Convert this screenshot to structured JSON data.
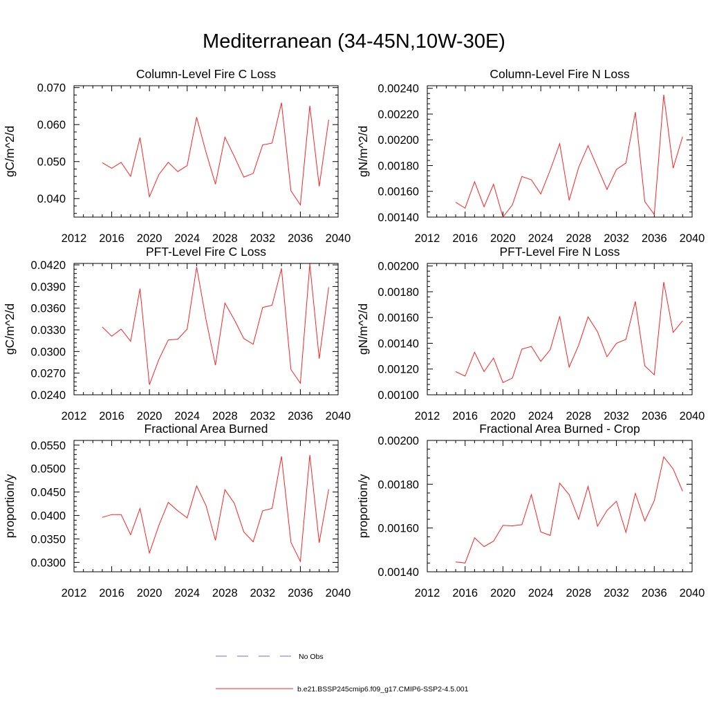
{
  "figure": {
    "title": "Mediterranean (34-45N,10W-30E)",
    "legend": [
      {
        "label": "No Obs",
        "color": "#6f6fd8",
        "dash": true
      },
      {
        "label": "b.e21.BSSP245cmip6.f09_g17.CMIP6-SSP2-4.5.001",
        "color": "#ff2020",
        "dash": false
      }
    ]
  },
  "chart_data": [
    {
      "type": "line",
      "title": "Column-Level Fire C Loss",
      "ylabel": "gC/m^2/d",
      "xlim": [
        2012,
        2040
      ],
      "ylim": [
        0.035,
        0.0705
      ],
      "xticks": [
        "2012",
        "2016",
        "2020",
        "2024",
        "2028",
        "2032",
        "2036",
        "2040"
      ],
      "yticks": [
        "0.040",
        "0.050",
        "0.060",
        "0.070"
      ],
      "ytick_values": [
        0.04,
        0.05,
        0.06,
        0.07
      ],
      "x": [
        2015,
        2016,
        2017,
        2018,
        2019,
        2020,
        2021,
        2022,
        2023,
        2024,
        2025,
        2026,
        2027,
        2028,
        2029,
        2030,
        2031,
        2032,
        2033,
        2034,
        2035,
        2036,
        2037,
        2038,
        2039
      ],
      "series": [
        {
          "color": "#ff2020",
          "values": [
            0.0497,
            0.0482,
            0.0498,
            0.046,
            0.0565,
            0.0405,
            0.0465,
            0.0498,
            0.0473,
            0.0489,
            0.062,
            0.0525,
            0.0439,
            0.0566,
            0.0514,
            0.0458,
            0.0468,
            0.0545,
            0.055,
            0.0659,
            0.0421,
            0.0383,
            0.0651,
            0.0433,
            0.0613
          ]
        }
      ]
    },
    {
      "type": "line",
      "title": "Column-Level Fire N Loss",
      "ylabel": "gN/m^2/d",
      "xlim": [
        2012,
        2040
      ],
      "ylim": [
        0.0014,
        0.00242
      ],
      "xticks": [
        "2012",
        "2016",
        "2020",
        "2024",
        "2028",
        "2032",
        "2036",
        "2040"
      ],
      "yticks": [
        "0.00140",
        "0.00160",
        "0.00180",
        "0.00200",
        "0.00220",
        "0.00240"
      ],
      "ytick_values": [
        0.0014,
        0.0016,
        0.0018,
        0.002,
        0.0022,
        0.0024
      ],
      "x": [
        2015,
        2016,
        2017,
        2018,
        2019,
        2020,
        2021,
        2022,
        2023,
        2024,
        2025,
        2026,
        2027,
        2028,
        2029,
        2030,
        2031,
        2032,
        2033,
        2034,
        2035,
        2036,
        2037,
        2038,
        2039
      ],
      "series": [
        {
          "color": "#ff2020",
          "values": [
            0.001515,
            0.00147,
            0.001675,
            0.00148,
            0.001655,
            0.0014,
            0.001495,
            0.001715,
            0.00169,
            0.00158,
            0.001765,
            0.00197,
            0.00153,
            0.001785,
            0.001955,
            0.001785,
            0.001615,
            0.00177,
            0.00182,
            0.002215,
            0.00152,
            0.00142,
            0.00235,
            0.00178,
            0.002025
          ]
        }
      ]
    },
    {
      "type": "line",
      "title": "PFT-Level Fire C Loss",
      "ylabel": "gC/m^2/d",
      "xlim": [
        2012,
        2040
      ],
      "ylim": [
        0.024,
        0.0422
      ],
      "xticks": [
        "2012",
        "2016",
        "2020",
        "2024",
        "2028",
        "2032",
        "2036",
        "2040"
      ],
      "yticks": [
        "0.0240",
        "0.0270",
        "0.0300",
        "0.0330",
        "0.0360",
        "0.0390",
        "0.0420"
      ],
      "ytick_values": [
        0.024,
        0.027,
        0.03,
        0.033,
        0.036,
        0.039,
        0.042
      ],
      "x": [
        2015,
        2016,
        2017,
        2018,
        2019,
        2020,
        2021,
        2022,
        2023,
        2024,
        2025,
        2026,
        2027,
        2028,
        2029,
        2030,
        2031,
        2032,
        2033,
        2034,
        2035,
        2036,
        2037,
        2038,
        2039
      ],
      "series": [
        {
          "color": "#ff2020",
          "values": [
            0.0334,
            0.0321,
            0.0331,
            0.0314,
            0.0387,
            0.0254,
            0.0289,
            0.0316,
            0.0317,
            0.0331,
            0.0417,
            0.0344,
            0.0281,
            0.0367,
            0.0344,
            0.0318,
            0.031,
            0.0361,
            0.0364,
            0.0415,
            0.0275,
            0.0256,
            0.0421,
            0.029,
            0.0389
          ]
        }
      ]
    },
    {
      "type": "line",
      "title": "PFT-Level Fire N Loss",
      "ylabel": "gN/m^2/d",
      "xlim": [
        2012,
        2040
      ],
      "ylim": [
        0.001,
        0.00202
      ],
      "xticks": [
        "2012",
        "2016",
        "2020",
        "2024",
        "2028",
        "2032",
        "2036",
        "2040"
      ],
      "yticks": [
        "0.00100",
        "0.00120",
        "0.00140",
        "0.00160",
        "0.00180",
        "0.00200"
      ],
      "ytick_values": [
        0.001,
        0.0012,
        0.0014,
        0.0016,
        0.0018,
        0.002
      ],
      "x": [
        2015,
        2016,
        2017,
        2018,
        2019,
        2020,
        2021,
        2022,
        2023,
        2024,
        2025,
        2026,
        2027,
        2028,
        2029,
        2030,
        2031,
        2032,
        2033,
        2034,
        2035,
        2036,
        2037,
        2038,
        2039
      ],
      "series": [
        {
          "color": "#ff2020",
          "values": [
            0.00118,
            0.001145,
            0.00133,
            0.00118,
            0.001285,
            0.001095,
            0.00113,
            0.001355,
            0.001375,
            0.00126,
            0.00135,
            0.00161,
            0.001215,
            0.001385,
            0.001605,
            0.00149,
            0.001295,
            0.0014,
            0.00143,
            0.001725,
            0.001225,
            0.001155,
            0.001875,
            0.001485,
            0.001575
          ]
        }
      ]
    },
    {
      "type": "line",
      "title": "Fractional Area Burned",
      "ylabel": "proportion/y",
      "xlim": [
        2012,
        2040
      ],
      "ylim": [
        0.028,
        0.056
      ],
      "xticks": [
        "2012",
        "2016",
        "2020",
        "2024",
        "2028",
        "2032",
        "2036",
        "2040"
      ],
      "yticks": [
        "0.0300",
        "0.0350",
        "0.0400",
        "0.0450",
        "0.0500",
        "0.0550"
      ],
      "ytick_values": [
        0.03,
        0.035,
        0.04,
        0.045,
        0.05,
        0.055
      ],
      "x": [
        2015,
        2016,
        2017,
        2018,
        2019,
        2020,
        2021,
        2022,
        2023,
        2024,
        2025,
        2026,
        2027,
        2028,
        2029,
        2030,
        2031,
        2032,
        2033,
        2034,
        2035,
        2036,
        2037,
        2038,
        2039
      ],
      "series": [
        {
          "color": "#ff2020",
          "values": [
            0.0396,
            0.0402,
            0.0402,
            0.0359,
            0.0415,
            0.032,
            0.0379,
            0.0428,
            0.041,
            0.0395,
            0.0463,
            0.0421,
            0.0347,
            0.0455,
            0.0426,
            0.0365,
            0.0344,
            0.041,
            0.0415,
            0.0526,
            0.0343,
            0.0302,
            0.0529,
            0.0342,
            0.0456
          ]
        }
      ]
    },
    {
      "type": "line",
      "title": "Fractional Area Burned - Crop",
      "ylabel": "proportion/y",
      "xlim": [
        2012,
        2040
      ],
      "ylim": [
        0.0014,
        0.002
      ],
      "xticks": [
        "2012",
        "2016",
        "2020",
        "2024",
        "2028",
        "2032",
        "2036",
        "2040"
      ],
      "yticks": [
        "0.00140",
        "0.00160",
        "0.00180",
        "0.00200"
      ],
      "ytick_values": [
        0.0014,
        0.0016,
        0.0018,
        0.002
      ],
      "x": [
        2015,
        2016,
        2017,
        2018,
        2019,
        2020,
        2021,
        2022,
        2023,
        2024,
        2025,
        2026,
        2027,
        2028,
        2029,
        2030,
        2031,
        2032,
        2033,
        2034,
        2035,
        2036,
        2037,
        2038,
        2039
      ],
      "series": [
        {
          "color": "#ff2020",
          "values": [
            0.001445,
            0.00144,
            0.001555,
            0.001515,
            0.00154,
            0.001612,
            0.00161,
            0.001615,
            0.001752,
            0.001582,
            0.001566,
            0.001805,
            0.001752,
            0.00164,
            0.00179,
            0.001608,
            0.00168,
            0.001722,
            0.00158,
            0.001758,
            0.001632,
            0.001725,
            0.001925,
            0.00187,
            0.001768
          ]
        }
      ]
    }
  ]
}
